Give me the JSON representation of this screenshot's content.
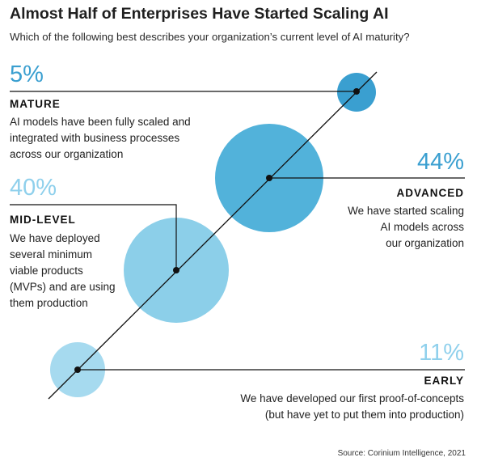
{
  "header": {
    "title": "Almost Half of Enterprises Have Started Scaling AI",
    "subtitle": "Which of the following best describes your organization’s current level of AI maturity?"
  },
  "colors": {
    "mature": "#3a9fd0",
    "advanced": "#52b2da",
    "mid_level": "#8ccfe9",
    "early": "#a6daef",
    "pct_dark": "#3a9fd0",
    "pct_light": "#8fd0ec"
  },
  "levels": {
    "mature": {
      "percent": "5%",
      "value": 5,
      "label": "MATURE",
      "description": "AI models have been fully scaled and\nintegrated with business processes\nacross our organization"
    },
    "advanced": {
      "percent": "44%",
      "value": 44,
      "label": "ADVANCED",
      "description": "We have started scaling\nAI models across\nour organization"
    },
    "mid_level": {
      "percent": "40%",
      "value": 40,
      "label": "MID-LEVEL",
      "description": "We have deployed\nseveral minimum\nviable products\n(MVPs) and are using\nthem production"
    },
    "early": {
      "percent": "11%",
      "value": 11,
      "label": "EARLY",
      "description": "We have developed our first proof-of-concepts\n(but have yet to put them into production)"
    }
  },
  "source": "Source: Corinium Intelligence, 2021"
}
